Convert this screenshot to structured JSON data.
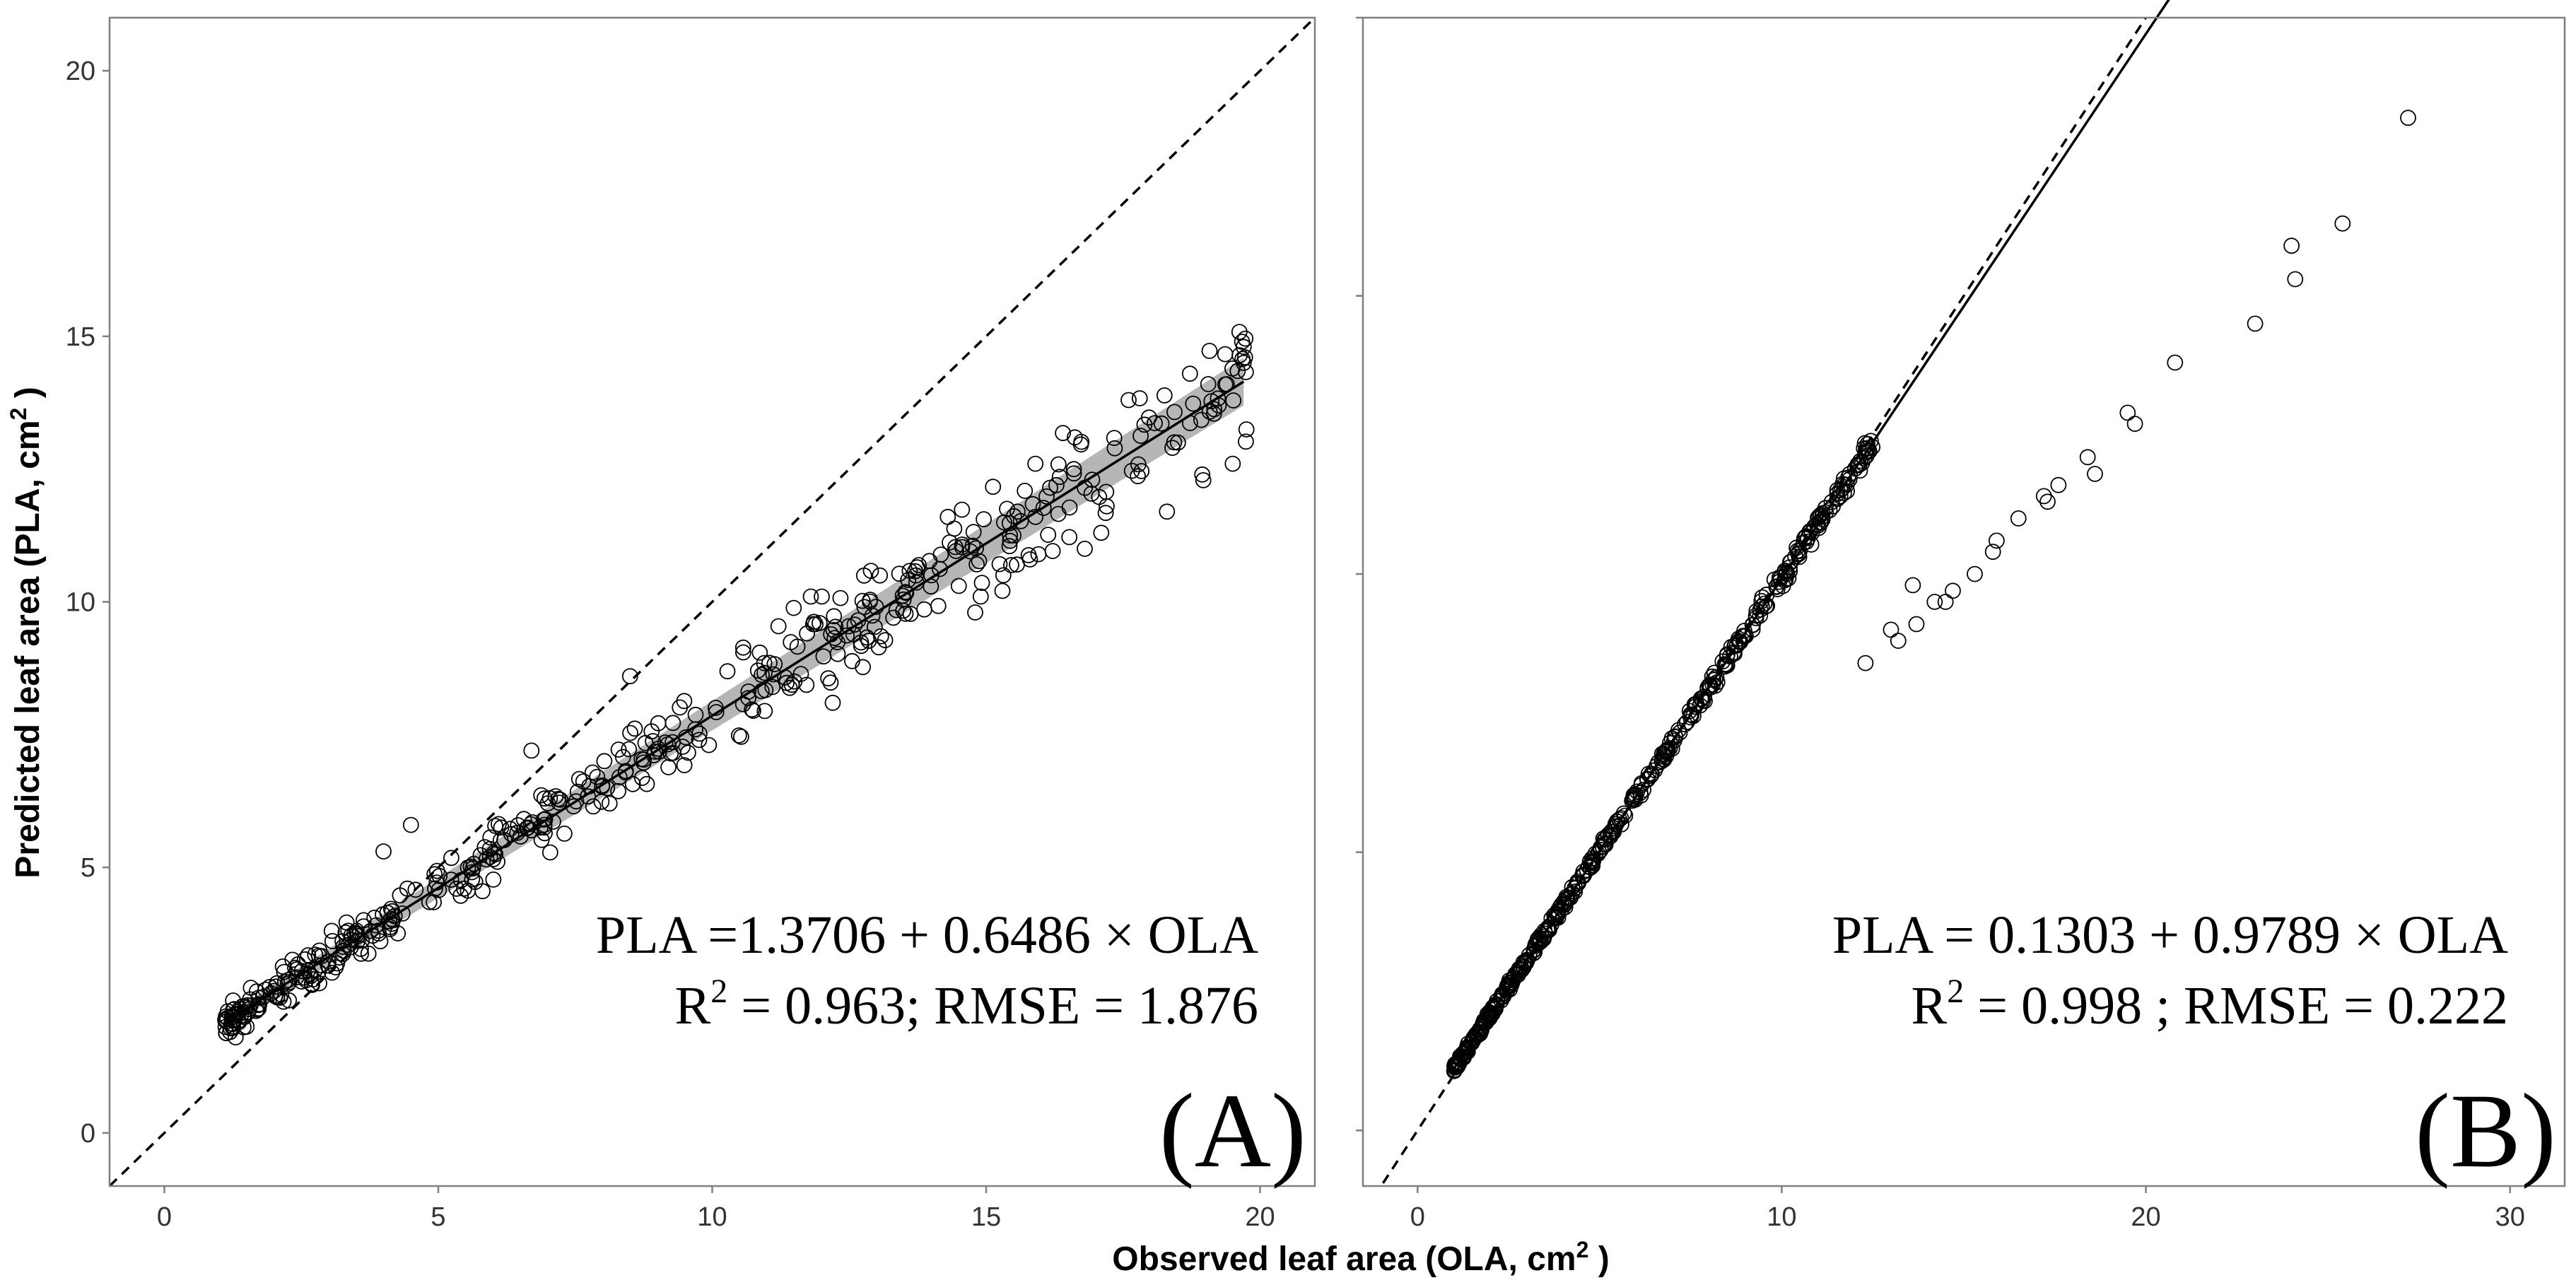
{
  "figure": {
    "shared_xlabel_main": "Observed leaf area (OLA, cm",
    "shared_xlabel_sup": "2",
    "shared_xlabel_end": " )",
    "shared_ylabel_main": "Predicted leaf area (PLA, cm",
    "shared_ylabel_sup": "2",
    "shared_ylabel_end": " )"
  },
  "colors": {
    "ink": "#000000",
    "frame": "#7f7f7f",
    "band": "#9e9e9e",
    "background": "#ffffff"
  },
  "chart_data": [
    {
      "type": "scatter",
      "panel_label": "(A)",
      "xlim": [
        -1,
        21
      ],
      "ylim": [
        -1,
        21
      ],
      "x_ticks": [
        0,
        5,
        10,
        15,
        20
      ],
      "y_ticks": [
        0,
        5,
        10,
        15,
        20
      ],
      "x_tick_labels": [
        "0",
        "5",
        "10",
        "15",
        "20"
      ],
      "y_tick_labels": [
        "0",
        "5",
        "10",
        "15",
        "20"
      ],
      "fit": {
        "intercept": 1.3706,
        "slope": 0.6486,
        "x_range": [
          1.2,
          19.7
        ],
        "confidence_band": true
      },
      "reference_line": "1:1 dashed",
      "equation_text": "PLA =1.3706 + 0.6486 × OLA",
      "stats_pre": "R",
      "stats_sup": "2",
      "stats_text": " = 0.963; RMSE = 1.876",
      "point_count": 470,
      "x_range": [
        1.1,
        19.8
      ],
      "noise_sd": 0.45,
      "seed": 17,
      "extra_points": [
        [
          19.7,
          14.8
        ],
        [
          19.7,
          14.5
        ],
        [
          19.5,
          12.6
        ],
        [
          18.5,
          13.0
        ],
        [
          18.4,
          12.9
        ],
        [
          18.3,
          11.7
        ],
        [
          17.6,
          13.8
        ],
        [
          17.1,
          11.3
        ],
        [
          17.2,
          11.8
        ],
        [
          16.8,
          11.0
        ],
        [
          16.6,
          12.5
        ],
        [
          15.9,
          12.6
        ],
        [
          15.9,
          11.6
        ],
        [
          15.8,
          10.8
        ],
        [
          14.9,
          10.1
        ],
        [
          14.8,
          9.8
        ],
        [
          14.5,
          10.3
        ],
        [
          14.3,
          11.6
        ],
        [
          14.0,
          10.5
        ],
        [
          12.2,
          8.1
        ],
        [
          12.0,
          10.1
        ],
        [
          11.8,
          10.1
        ],
        [
          11.5,
          8.5
        ],
        [
          8.5,
          8.6
        ],
        [
          6.7,
          7.2
        ],
        [
          4.5,
          5.8
        ],
        [
          4.0,
          5.3
        ],
        [
          1.2,
          1.9
        ],
        [
          1.3,
          1.8
        ],
        [
          1.5,
          2.0
        ]
      ]
    },
    {
      "type": "scatter",
      "panel_label": "(B)",
      "xlim": [
        -1.5,
        31.5
      ],
      "ylim": [
        -1,
        20
      ],
      "x_ticks": [
        0,
        10,
        20,
        30
      ],
      "y_ticks": [
        0,
        5,
        10,
        15,
        20
      ],
      "x_tick_labels": [
        "0",
        "10",
        "20",
        "30"
      ],
      "y_tick_labels": [
        "",
        "",
        "",
        "",
        ""
      ],
      "fit": {
        "intercept": 0.1303,
        "slope": 0.9789,
        "x_range": [
          1.0,
          27.3
        ],
        "confidence_band": false
      },
      "reference_line": "1:1 dashed",
      "equation_text": "PLA = 0.1303 + 0.9789 × OLA",
      "stats_pre": "R",
      "stats_sup": "2",
      "stats_text": " = 0.998 ; RMSE = 0.222",
      "point_count": 440,
      "x_range": [
        1.0,
        12.5
      ],
      "noise_sd": 0.09,
      "seed": 41,
      "extra_points": [
        [
          27.2,
          18.2
        ],
        [
          25.4,
          16.3
        ],
        [
          24.0,
          15.9
        ],
        [
          24.1,
          15.3
        ],
        [
          23.0,
          14.5
        ],
        [
          20.8,
          13.8
        ],
        [
          19.7,
          12.7
        ],
        [
          19.5,
          12.9
        ],
        [
          18.6,
          11.8
        ],
        [
          18.4,
          12.1
        ],
        [
          17.6,
          11.6
        ],
        [
          17.3,
          11.3
        ],
        [
          17.2,
          11.4
        ],
        [
          16.5,
          11.0
        ],
        [
          15.8,
          10.4
        ],
        [
          15.9,
          10.6
        ],
        [
          15.3,
          10.0
        ],
        [
          14.7,
          9.7
        ],
        [
          14.5,
          9.5
        ],
        [
          14.2,
          9.5
        ],
        [
          13.7,
          9.1
        ],
        [
          13.6,
          9.8
        ],
        [
          13.2,
          8.8
        ],
        [
          13.0,
          9.0
        ],
        [
          12.3,
          8.4
        ]
      ]
    }
  ]
}
